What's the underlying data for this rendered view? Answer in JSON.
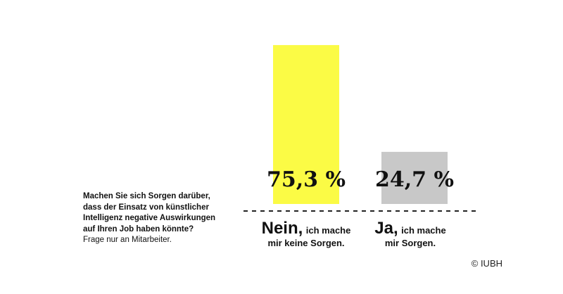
{
  "question": {
    "lines": [
      "Machen Sie sich Sorgen darüber,",
      "dass der Einsatz von künstlicher",
      "Intelligenz negative Auswirkungen",
      "auf Ihren Job haben könnte?"
    ],
    "note": "Frage nur an Mitarbeiter."
  },
  "categories_display": [
    {
      "main": "Nein,",
      "sub1": "ich mache",
      "sub2": "mir keine Sorgen."
    },
    {
      "main": "Ja,",
      "sub1": "ich mache",
      "sub2": "mir Sorgen."
    }
  ],
  "copyright": "© IUBH",
  "chart_data": {
    "type": "bar",
    "categories": [
      "Nein",
      "Ja"
    ],
    "values": [
      75.3,
      24.7
    ],
    "value_labels": [
      "75,3 %",
      "24,7 %"
    ],
    "colors": [
      "#FBFB45",
      "#C8C8C8"
    ],
    "ylim": [
      0,
      100
    ],
    "grid": false,
    "legend": "none",
    "baseline": "dashed"
  }
}
